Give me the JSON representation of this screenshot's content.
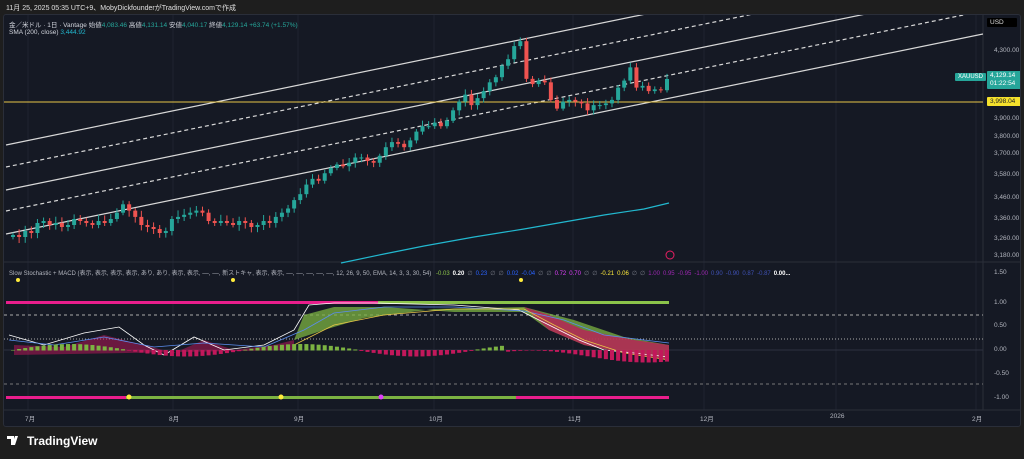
{
  "caption": "11月 25, 2025 05:35 UTC+9、MobyDickfounderがTradingView.comで作成",
  "legend": {
    "symbol": "金／米ドル · 1日 · Vantage",
    "open_label": "始値",
    "open": "4,083.46",
    "high_label": "高値",
    "high": "4,131.14",
    "low_label": "安値",
    "low": "4,040.17",
    "close_label": "終値",
    "close": "4,129.14",
    "change": "+63.74 (+1.57%)",
    "sma_label": "SMA (200, close)",
    "sma_value": "3,444.92"
  },
  "indicator_legend": {
    "title": "Slow Stochastic + MACD (表示, 表示, 表示, 表示, あり, あり, 表示, 表示, ––, ––, 新ストキャ, 表示, 表示, ––, ––, ––, ––, ––, 12, 26, 9, 50, EMA, 14, 3, 3, 30, 54)",
    "values": [
      {
        "t": "-0.03",
        "c": "#8bc34a"
      },
      {
        "t": "0.20",
        "c": "#ffffff"
      },
      {
        "t": "∅",
        "c": "#787b86"
      },
      {
        "t": "0.23",
        "c": "#2962ff"
      },
      {
        "t": "∅",
        "c": "#787b86"
      },
      {
        "t": "∅",
        "c": "#787b86"
      },
      {
        "t": "0.02",
        "c": "#2962ff"
      },
      {
        "t": "-0.04",
        "c": "#2962ff"
      },
      {
        "t": "∅",
        "c": "#787b86"
      },
      {
        "t": "∅",
        "c": "#787b86"
      },
      {
        "t": "0.72",
        "c": "#e040fb"
      },
      {
        "t": "0.70",
        "c": "#e040fb"
      },
      {
        "t": "∅",
        "c": "#787b86"
      },
      {
        "t": "∅",
        "c": "#787b86"
      },
      {
        "t": "-0.21",
        "c": "#ffeb3b"
      },
      {
        "t": "0.06",
        "c": "#ffeb3b"
      },
      {
        "t": "∅",
        "c": "#787b86"
      },
      {
        "t": "∅",
        "c": "#787b86"
      },
      {
        "t": "1.00",
        "c": "#9c27b0"
      },
      {
        "t": "0.95",
        "c": "#9c27b0"
      },
      {
        "t": "-0.95",
        "c": "#9c27b0"
      },
      {
        "t": "-1.00",
        "c": "#9c27b0"
      },
      {
        "t": "0.90",
        "c": "#3f51b5"
      },
      {
        "t": "-0.90",
        "c": "#3f51b5"
      },
      {
        "t": "0.87",
        "c": "#3f51b5"
      },
      {
        "t": "-0.87",
        "c": "#3f51b5"
      },
      {
        "t": "0.00...",
        "c": "#ffffff"
      }
    ]
  },
  "price_axis": {
    "currency": "USD",
    "labels": [
      "4,300.00",
      "3,900.00",
      "3,800.00",
      "3,700.00",
      "3,580.00",
      "3,460.00",
      "3,360.00",
      "3,260.00",
      "3,180.00"
    ],
    "symbol_tag": "XAUUSD",
    "last_price": "4,129.14",
    "countdown": "01:22:54",
    "hline_price": "3,998.04"
  },
  "indicator_axis": {
    "labels": [
      "1.50",
      "1.00",
      "0.50",
      "0.00",
      "-0.50",
      "-1.00"
    ]
  },
  "time_axis": {
    "labels": [
      "7月",
      "8月",
      "9月",
      "10月",
      "11月",
      "12月",
      "2026",
      "2月"
    ]
  },
  "colors": {
    "up": "#26a69a",
    "down": "#ef5350",
    "sma": "#22b8cf",
    "hline": "#e8c547"
  },
  "closes": [
    3280,
    3270,
    3300,
    3290,
    3340,
    3350,
    3330,
    3340,
    3320,
    3330,
    3360,
    3350,
    3340,
    3330,
    3350,
    3340,
    3360,
    3390,
    3430,
    3400,
    3370,
    3330,
    3320,
    3310,
    3290,
    3300,
    3360,
    3370,
    3380,
    3390,
    3400,
    3390,
    3350,
    3340,
    3350,
    3340,
    3330,
    3350,
    3340,
    3320,
    3330,
    3350,
    3340,
    3370,
    3390,
    3410,
    3450,
    3480,
    3530,
    3560,
    3550,
    3590,
    3620,
    3640,
    3630,
    3650,
    3680,
    3680,
    3660,
    3650,
    3690,
    3740,
    3770,
    3760,
    3740,
    3780,
    3830,
    3860,
    3860,
    3880,
    3860,
    3890,
    3950,
    4000,
    4040,
    3980,
    4020,
    4060,
    4110,
    4140,
    4210,
    4250,
    4330,
    4360,
    4130,
    4100,
    4120,
    4110,
    4010,
    3960,
    4000,
    4010,
    4000,
    3990,
    3950,
    3980,
    3980,
    3990,
    4010,
    4080,
    4120,
    4200,
    4080,
    4090,
    4060,
    4070,
    4065,
    4129
  ],
  "logo": "TradingView"
}
